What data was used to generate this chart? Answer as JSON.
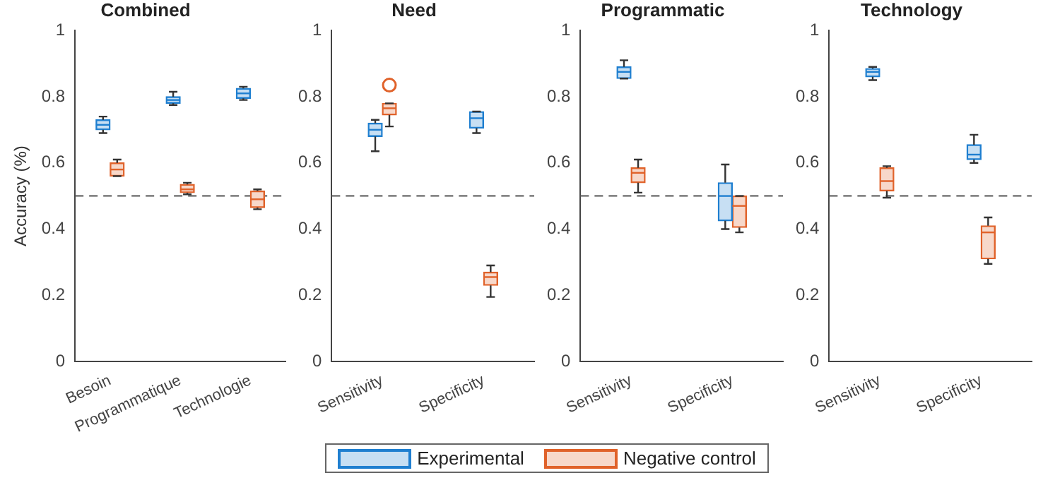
{
  "chart_data": [
    {
      "type": "box",
      "title": "Combined",
      "ylabel": "Accuracy (%)",
      "categories": [
        "Besoin",
        "Programmatique",
        "Technologie"
      ],
      "ylim": [
        0,
        1
      ],
      "yticks": [
        0,
        0.2,
        0.4,
        0.6,
        0.8,
        1
      ],
      "legend": "bottom",
      "ref_lines": [
        {
          "axis": "y",
          "value": 0.5,
          "line_style": "dashed",
          "color": "#555555"
        }
      ],
      "series": [
        {
          "name": "Experimental",
          "color": "#1f7fd0",
          "boxes": [
            {
              "low": 0.69,
              "q1": 0.7,
              "median": 0.715,
              "q3": 0.73,
              "high": 0.74
            },
            {
              "low": 0.775,
              "q1": 0.78,
              "median": 0.79,
              "q3": 0.8,
              "high": 0.815
            },
            {
              "low": 0.79,
              "q1": 0.795,
              "median": 0.81,
              "q3": 0.825,
              "high": 0.83
            }
          ]
        },
        {
          "name": "Negative control",
          "color": "#e0622a",
          "boxes": [
            {
              "low": 0.56,
              "q1": 0.56,
              "median": 0.58,
              "q3": 0.6,
              "high": 0.61
            },
            {
              "low": 0.505,
              "q1": 0.51,
              "median": 0.52,
              "q3": 0.535,
              "high": 0.54
            },
            {
              "low": 0.46,
              "q1": 0.465,
              "median": 0.49,
              "q3": 0.515,
              "high": 0.52
            }
          ]
        }
      ]
    },
    {
      "type": "box",
      "title": "Need",
      "categories": [
        "Sensitivity",
        "Specificity"
      ],
      "ylim": [
        0,
        1
      ],
      "yticks": [
        0,
        0.2,
        0.4,
        0.6,
        0.8,
        1
      ],
      "ref_lines": [
        {
          "axis": "y",
          "value": 0.5,
          "line_style": "dashed",
          "color": "#555555"
        }
      ],
      "series": [
        {
          "color": "#1f7fd0",
          "boxes": [
            {
              "low": 0.635,
              "q1": 0.68,
              "median": 0.7,
              "q3": 0.72,
              "high": 0.73
            },
            {
              "low": 0.69,
              "q1": 0.705,
              "median": 0.735,
              "q3": 0.755,
              "high": 0.755
            }
          ]
        },
        {
          "color": "#e0622a",
          "boxes": [
            {
              "low": 0.71,
              "q1": 0.745,
              "median": 0.765,
              "q3": 0.78,
              "high": 0.78,
              "outliers": [
                0.835
              ]
            },
            {
              "low": 0.195,
              "q1": 0.23,
              "median": 0.255,
              "q3": 0.27,
              "high": 0.29
            }
          ]
        }
      ]
    },
    {
      "type": "box",
      "title": "Programmatic",
      "categories": [
        "Sensitivity",
        "Specificity"
      ],
      "ylim": [
        0,
        1
      ],
      "yticks": [
        0,
        0.2,
        0.4,
        0.6,
        0.8,
        1
      ],
      "ref_lines": [
        {
          "axis": "y",
          "value": 0.5,
          "line_style": "dashed",
          "color": "#555555"
        }
      ],
      "series": [
        {
          "color": "#1f7fd0",
          "boxes": [
            {
              "low": 0.855,
              "q1": 0.855,
              "median": 0.875,
              "q3": 0.89,
              "high": 0.91
            },
            {
              "low": 0.4,
              "q1": 0.425,
              "median": 0.5,
              "q3": 0.54,
              "high": 0.595
            }
          ]
        },
        {
          "color": "#e0622a",
          "boxes": [
            {
              "low": 0.51,
              "q1": 0.54,
              "median": 0.57,
              "q3": 0.585,
              "high": 0.61
            },
            {
              "low": 0.39,
              "q1": 0.405,
              "median": 0.47,
              "q3": 0.5,
              "high": 0.5
            }
          ]
        }
      ]
    },
    {
      "type": "box",
      "title": "Technology",
      "categories": [
        "Sensitivity",
        "Specificity"
      ],
      "ylim": [
        0,
        1
      ],
      "yticks": [
        0,
        0.2,
        0.4,
        0.6,
        0.8,
        1
      ],
      "ref_lines": [
        {
          "axis": "y",
          "value": 0.5,
          "line_style": "dashed",
          "color": "#555555"
        }
      ],
      "series": [
        {
          "color": "#1f7fd0",
          "boxes": [
            {
              "low": 0.85,
              "q1": 0.86,
              "median": 0.875,
              "q3": 0.885,
              "high": 0.89
            },
            {
              "low": 0.6,
              "q1": 0.61,
              "median": 0.625,
              "q3": 0.655,
              "high": 0.685
            }
          ]
        },
        {
          "color": "#e0622a",
          "boxes": [
            {
              "low": 0.495,
              "q1": 0.515,
              "median": 0.545,
              "q3": 0.585,
              "high": 0.59
            },
            {
              "low": 0.295,
              "q1": 0.31,
              "median": 0.39,
              "q3": 0.41,
              "high": 0.435
            }
          ]
        }
      ]
    }
  ]
}
